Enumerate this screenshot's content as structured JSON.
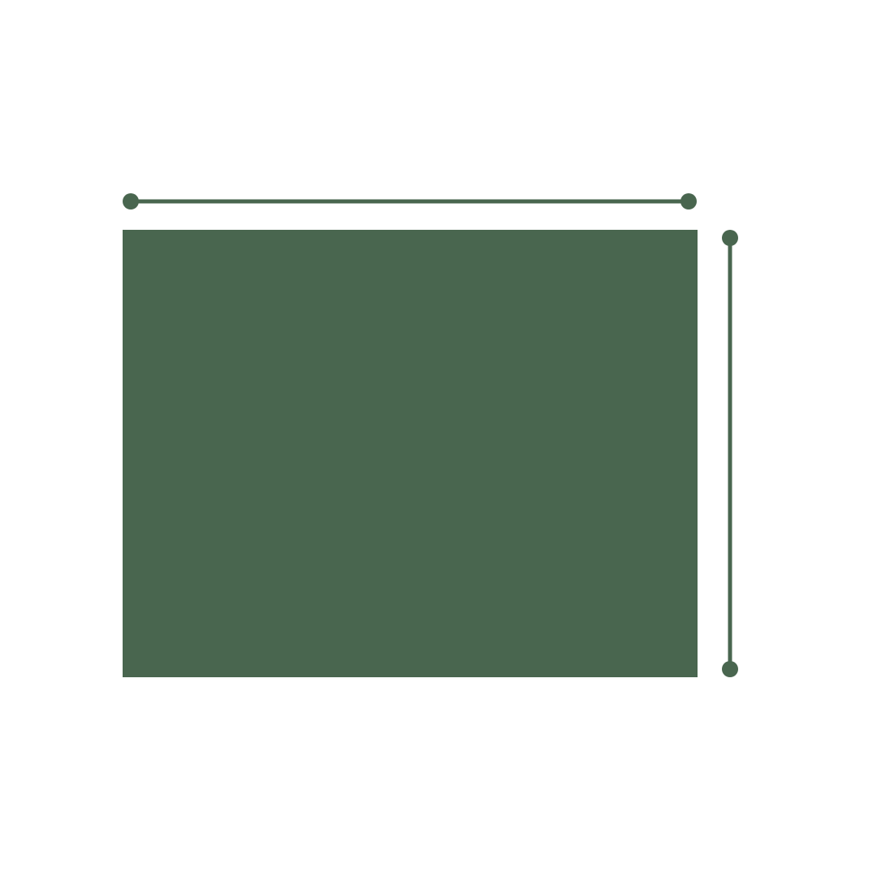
{
  "diagram": {
    "shape": "rectangle",
    "fill_color": "#49664f",
    "dimension_lines": [
      {
        "name": "width-dimension-line",
        "orientation": "horizontal"
      },
      {
        "name": "height-dimension-line",
        "orientation": "vertical"
      }
    ],
    "line_color": "#49664f",
    "endpoint_icon": "circle-dot"
  }
}
